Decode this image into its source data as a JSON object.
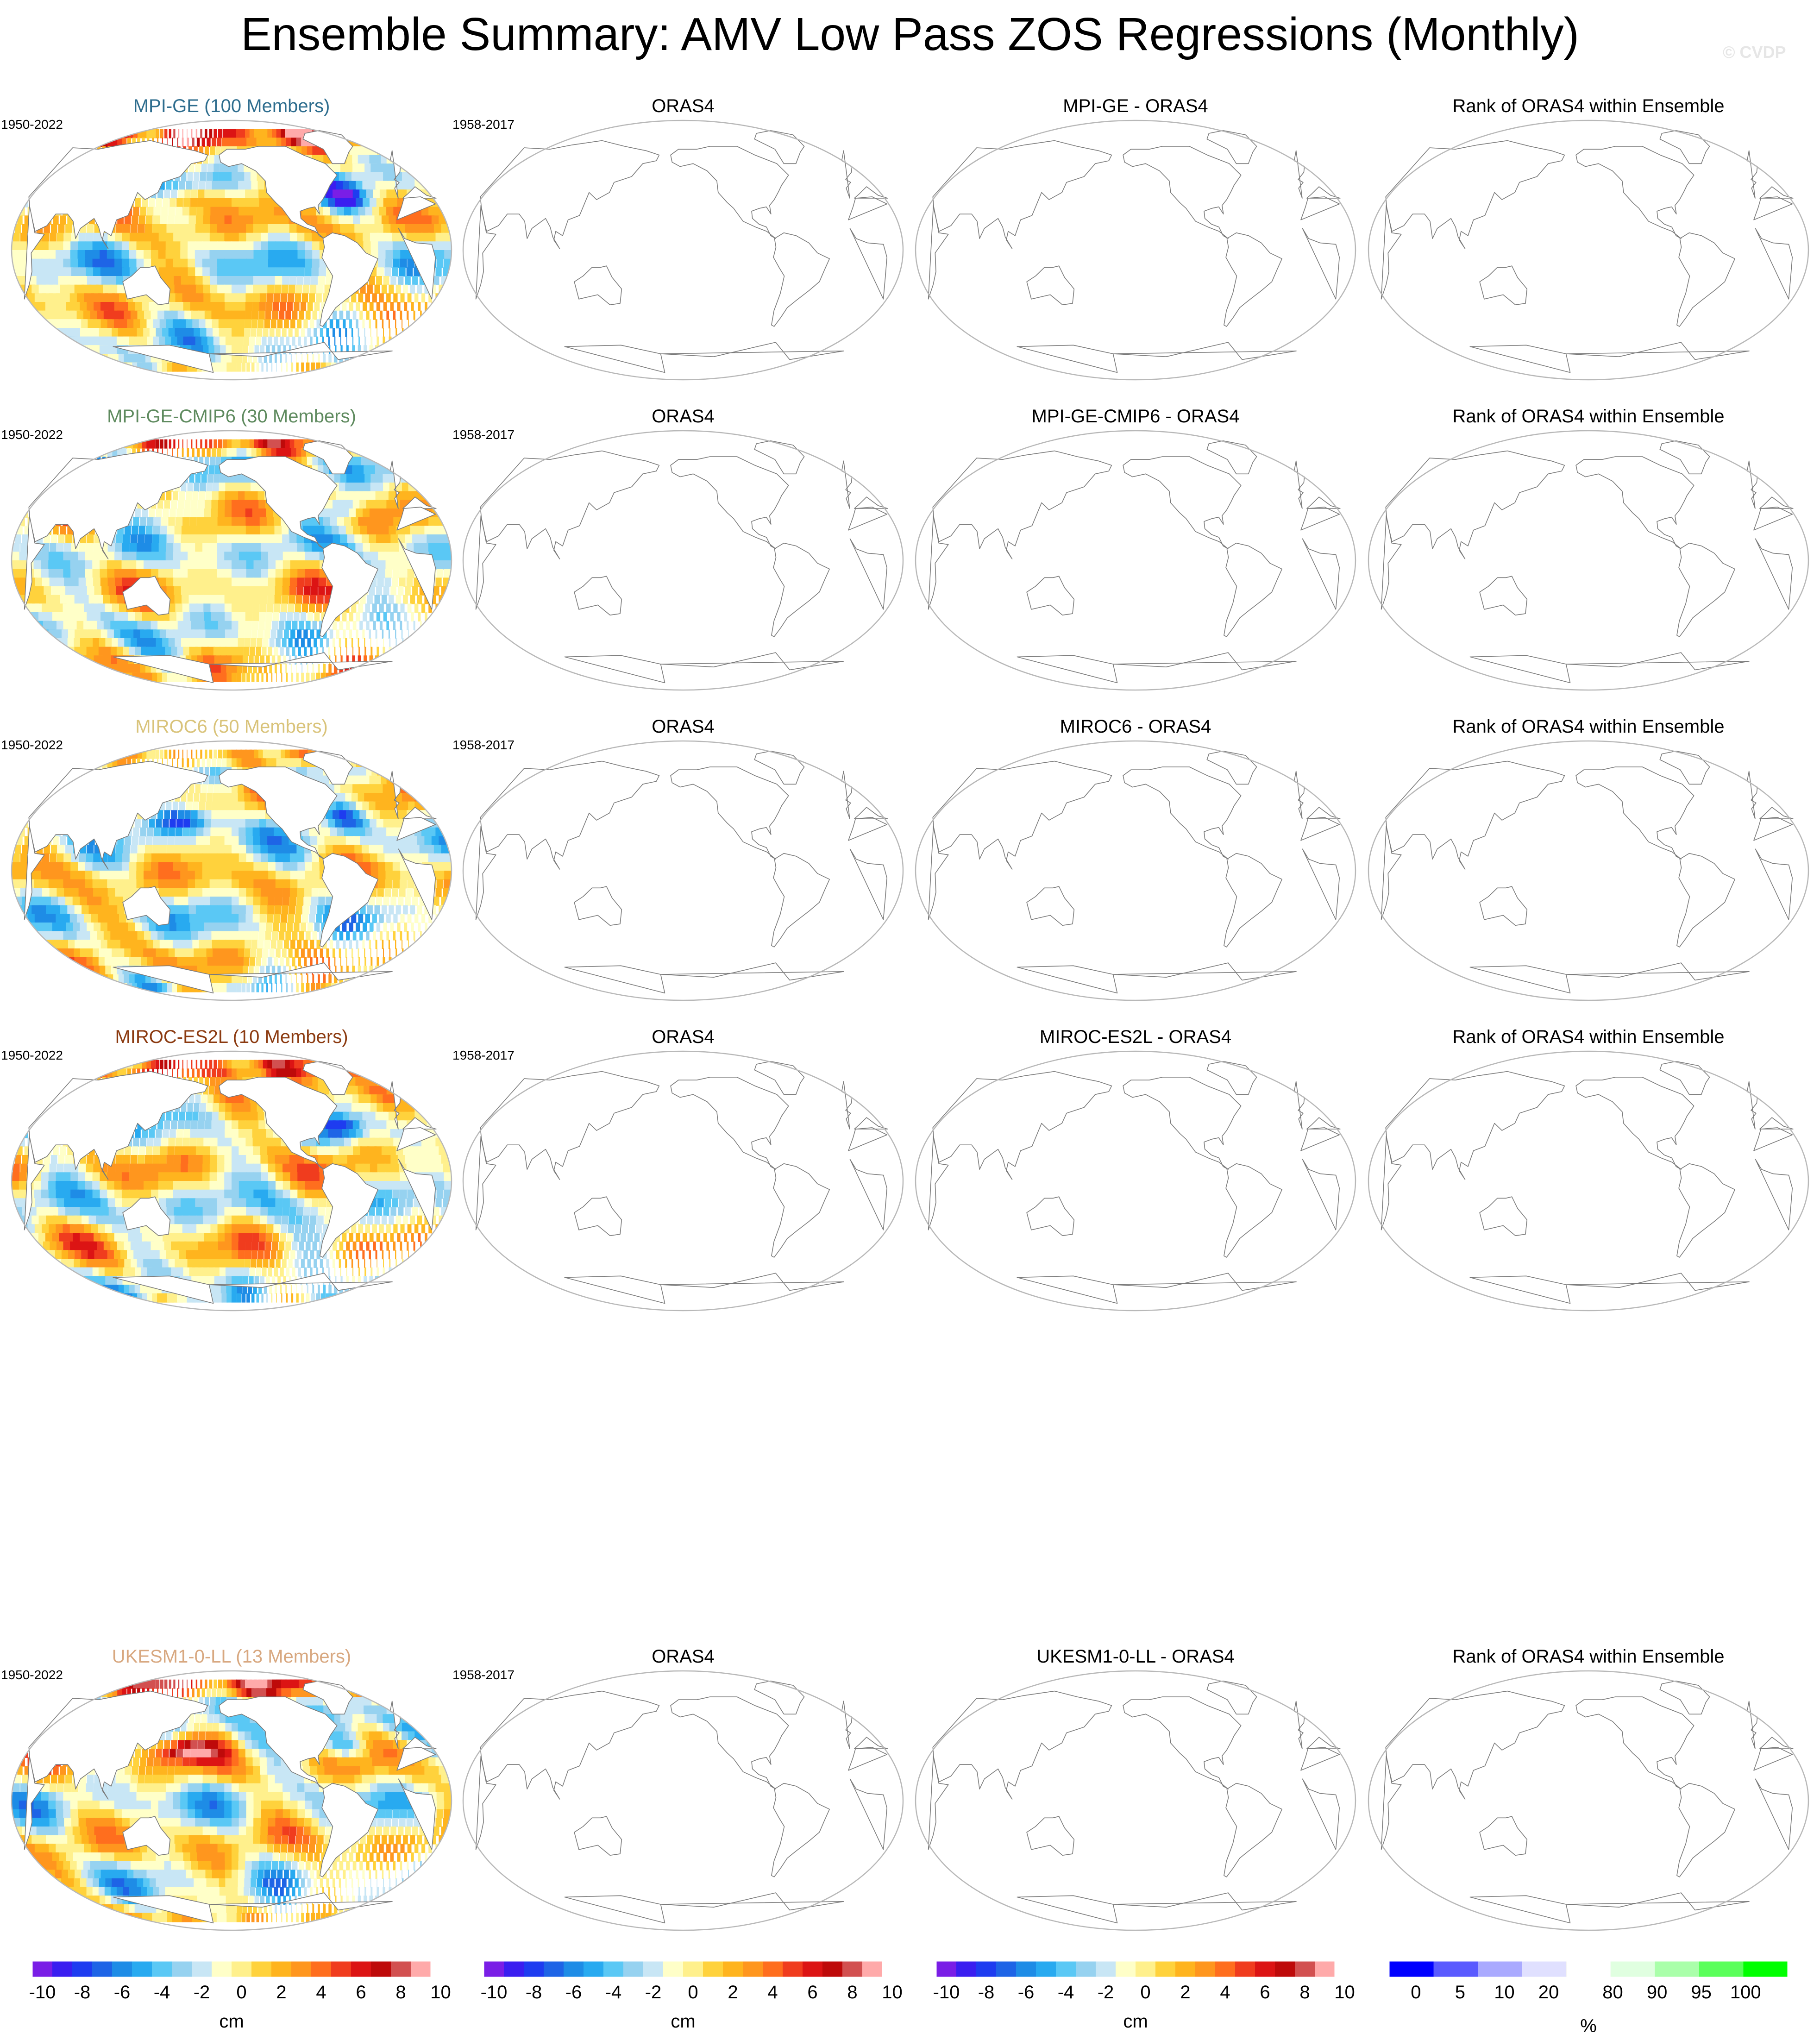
{
  "title": "Ensemble Summary: AMV Low Pass ZOS Regressions (Monthly)",
  "credit": "© CVDP",
  "rows": [
    {
      "ensemble_title": "MPI-GE (100 Members)",
      "ensemble_color": "#2e6d8e",
      "ensemble_period": "1950-2022",
      "obs_title": "ORAS4",
      "obs_period": "1958-2017",
      "diff_title": "MPI-GE - ORAS4",
      "rank_title": "Rank of ORAS4 within Ensemble"
    },
    {
      "ensemble_title": "MPI-GE-CMIP6 (30 Members)",
      "ensemble_color": "#5e8a5e",
      "ensemble_period": "1950-2022",
      "obs_title": "ORAS4",
      "obs_period": "1958-2017",
      "diff_title": "MPI-GE-CMIP6 - ORAS4",
      "rank_title": "Rank of ORAS4 within Ensemble"
    },
    {
      "ensemble_title": "MIROC6 (50 Members)",
      "ensemble_color": "#d9c37a",
      "ensemble_period": "1950-2022",
      "obs_title": "ORAS4",
      "obs_period": "1958-2017",
      "diff_title": "MIROC6 - ORAS4",
      "rank_title": "Rank of ORAS4 within Ensemble"
    },
    {
      "ensemble_title": "MIROC-ES2L (10 Members)",
      "ensemble_color": "#8b3a10",
      "ensemble_period": "1950-2022",
      "obs_title": "ORAS4",
      "obs_period": "1958-2017",
      "diff_title": "MIROC-ES2L - ORAS4",
      "rank_title": "Rank of ORAS4 within Ensemble"
    },
    {
      "ensemble_title": "UKESM1-0-LL (13 Members)",
      "ensemble_color": "#d8a880",
      "ensemble_period": "1950-2022",
      "obs_title": "ORAS4",
      "obs_period": "1958-2017",
      "diff_title": "UKESM1-0-LL - ORAS4",
      "rank_title": "Rank of ORAS4 within Ensemble"
    }
  ],
  "colorbar_cm": {
    "unit": "cm",
    "colors": [
      "#7a1ee6",
      "#3a1ef0",
      "#1e3cf0",
      "#1e64e6",
      "#1e8ce6",
      "#28aaf0",
      "#5ac8f5",
      "#96d2f0",
      "#c8e6f5",
      "#ffffc8",
      "#fff08c",
      "#ffd23c",
      "#ffb41e",
      "#ff961e",
      "#ff6e1e",
      "#f03c1e",
      "#dc1414",
      "#be0a0a",
      "#d25050",
      "#ffaaaa"
    ],
    "ticks": [
      "-10",
      "-8",
      "-6",
      "-4",
      "-2",
      "0",
      "2",
      "4",
      "6",
      "8",
      "10"
    ]
  },
  "colorbar_rank": {
    "unit": "%",
    "colors": [
      "#0000ff",
      "#5a5aff",
      "#aaaaff",
      "#e0e0ff",
      "#ffffff",
      "#e0ffe0",
      "#aaffaa",
      "#5aff5a",
      "#00ff00"
    ],
    "ticks": [
      "0",
      "5",
      "10",
      "20",
      "80",
      "90",
      "95",
      "100"
    ]
  }
}
